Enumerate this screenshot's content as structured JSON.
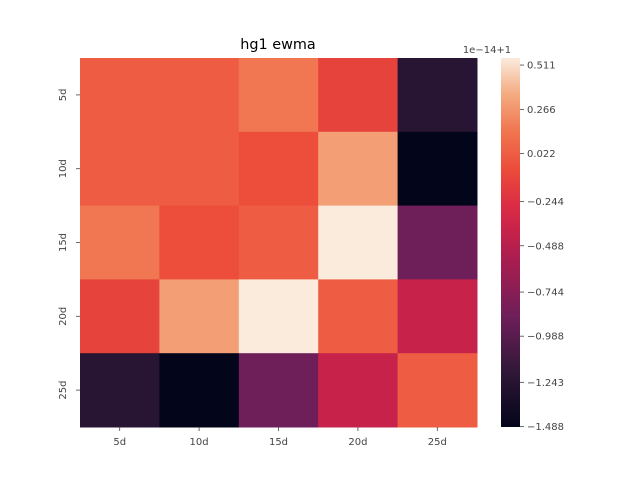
{
  "chart_data": {
    "type": "heatmap",
    "title": "hg1 ewma",
    "x_categories": [
      "5d",
      "10d",
      "15d",
      "20d",
      "25d"
    ],
    "y_categories": [
      "5d",
      "10d",
      "15d",
      "20d",
      "25d"
    ],
    "values": [
      [
        0.022,
        0.022,
        0.15,
        -0.12,
        -1.24
      ],
      [
        0.022,
        0.022,
        -0.05,
        0.3,
        -1.49
      ],
      [
        0.15,
        -0.05,
        0.022,
        0.55,
        -0.88
      ],
      [
        -0.12,
        0.3,
        0.55,
        0.022,
        -0.4
      ],
      [
        -1.24,
        -1.49,
        -0.88,
        -0.4,
        0.022
      ]
    ],
    "colorbar": {
      "offset_label": "1e−14+1",
      "ticks": [
        0.511,
        0.266,
        0.022,
        -0.244,
        -0.488,
        -0.744,
        -0.988,
        -1.243,
        -1.488
      ],
      "tick_labels": [
        "0.511",
        "0.266",
        "0.022",
        "−0.244",
        "−0.488",
        "−0.744",
        "−0.988",
        "−1.243",
        "−1.488"
      ],
      "vmin": -1.49,
      "vmax": 0.55,
      "colormap": "rocket"
    },
    "grid": false
  }
}
